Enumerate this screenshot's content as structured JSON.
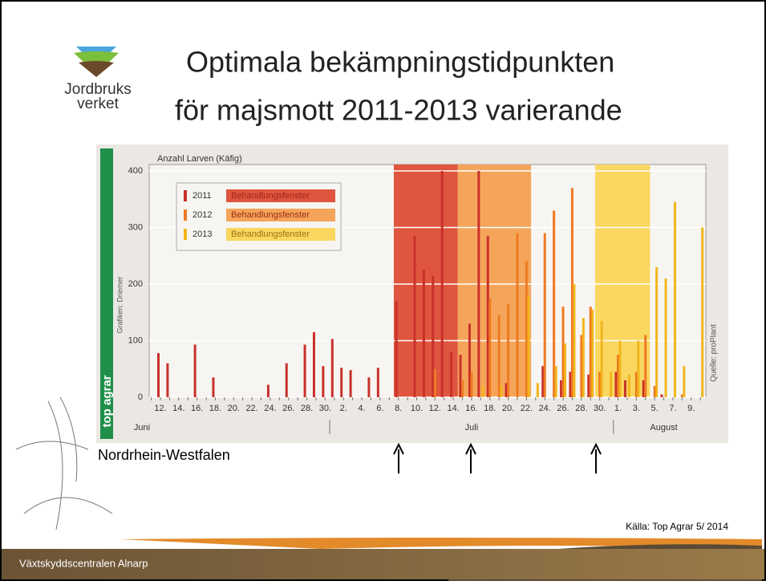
{
  "slide": {
    "title_lines": [
      "Optimala bekämpningstidpunkten",
      "för majsmott 2011-2013 varierande"
    ],
    "logo_lines": [
      "Jordbruks",
      "verket"
    ],
    "caption": "Nordrhein-Westfalen",
    "source": "Källa: Top Agrar 5/ 2014",
    "footer": "Växtskyddscentralen Alnarp"
  },
  "chart_data": {
    "type": "bar",
    "y_label": "Anzahl Larven (Käfig)",
    "side_labels": [
      "Grafiken: Driemer",
      "top agrar",
      "Quelle: proPlant"
    ],
    "categories": [
      null,
      "12.",
      null,
      "14.",
      null,
      "16.",
      null,
      "18.",
      null,
      "20.",
      null,
      "22.",
      null,
      "24.",
      null,
      "26.",
      null,
      "28.",
      null,
      "30.",
      null,
      "2.",
      null,
      "4.",
      null,
      "6.",
      null,
      "8.",
      null,
      "10.",
      null,
      "12.",
      null,
      "14.",
      null,
      "16.",
      null,
      "18.",
      null,
      "20.",
      null,
      "22.",
      null,
      "24.",
      null,
      "26.",
      null,
      "28.",
      null,
      "30.",
      null,
      "1.",
      null,
      "3.",
      null,
      "5.",
      null,
      "7.",
      null,
      "9.",
      null
    ],
    "months": [
      "Juni",
      "Juli",
      "August"
    ],
    "series": [
      {
        "name": "2011",
        "window_label": "Behandlungsfenster",
        "color": "#c8312a",
        "window_color": "#e0553f",
        "window": [
          27,
          33
        ],
        "values": [
          null,
          78,
          60,
          null,
          null,
          93,
          null,
          35,
          null,
          null,
          null,
          null,
          null,
          22,
          null,
          60,
          null,
          93,
          115,
          55,
          103,
          52,
          48,
          null,
          35,
          52,
          null,
          170,
          null,
          285,
          225,
          215,
          400,
          80,
          75,
          130,
          400,
          285,
          null,
          25,
          null,
          null,
          null,
          55,
          null,
          30,
          45,
          null,
          40,
          null,
          null,
          45,
          30,
          null,
          30,
          null,
          5,
          null,
          null,
          null,
          null
        ]
      },
      {
        "name": "2012",
        "window_label": "Behandlungsfenster",
        "color": "#ee7a22",
        "window_color": "#f5a55a",
        "window": [
          34,
          41
        ],
        "values": [
          null,
          null,
          null,
          null,
          null,
          null,
          null,
          null,
          null,
          null,
          null,
          null,
          null,
          null,
          null,
          null,
          null,
          null,
          null,
          null,
          null,
          null,
          null,
          null,
          null,
          null,
          null,
          null,
          null,
          null,
          null,
          50,
          null,
          null,
          30,
          45,
          null,
          175,
          145,
          165,
          290,
          240,
          null,
          290,
          330,
          160,
          370,
          110,
          160,
          45,
          null,
          75,
          null,
          45,
          110,
          20,
          null,
          null,
          5,
          null,
          null
        ]
      },
      {
        "name": "2013",
        "window_label": "Behandlungsfenster",
        "color": "#f2b51c",
        "window_color": "#f9d760",
        "window": [
          49,
          54
        ],
        "values": [
          null,
          null,
          null,
          null,
          null,
          null,
          null,
          null,
          null,
          null,
          null,
          null,
          null,
          null,
          null,
          null,
          null,
          null,
          null,
          null,
          null,
          null,
          null,
          null,
          null,
          null,
          null,
          null,
          null,
          null,
          null,
          null,
          null,
          null,
          null,
          null,
          20,
          null,
          20,
          null,
          null,
          180,
          25,
          null,
          55,
          95,
          200,
          140,
          155,
          135,
          45,
          100,
          40,
          100,
          null,
          230,
          210,
          345,
          55,
          null,
          300
        ]
      }
    ],
    "ylim": [
      0,
      400
    ],
    "yticks": [
      0,
      100,
      200,
      300,
      400
    ],
    "grid": true
  }
}
